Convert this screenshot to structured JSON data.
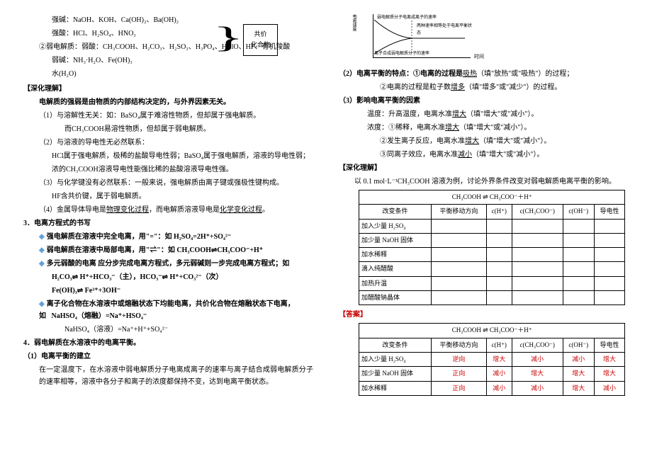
{
  "left": {
    "l1": "强碱：NaOH、KOH、Ca(OH)₂、Ba(OH)₂",
    "l2": "强酸：HCl、H₂SO₄、HNO₃",
    "l3_prefix": "②弱电解质：",
    "l3": "弱酸：CH₃COOH、H₂CO₃、H₂SO₃、H₃PO₄、HClO、HF、有机羧酸",
    "l4": "弱碱：NH₃·H₂O、Fe(OH)₃",
    "l5": "水(H₂O)",
    "box1": "共价",
    "box2": "化合物",
    "sec1_title": "【深化理解】",
    "sec1_sub": "电解质的强弱是由物质的内部结构决定的，与外界因素无关。",
    "p1": "（1）与溶解性无关：如：BaSO₄属于难溶性物质，但却属于强电解质。",
    "p1b": "而CH₃COOH易溶性物质，但却属于弱电解质。",
    "p2": "（2）与溶液的导电性无必然联系：",
    "p2b": "HCl属于强电解质，极稀的盐酸导电性弱；BaSO₄属于强电解质，溶液的导电性弱；",
    "p2c": "浓的CH₃COOH溶液导电性能强比稀的盐酸溶液导电性强。",
    "p3": "（3）与化学键没有必然联系：一般来说，强电解质由离子键或强极性键构成。",
    "p3b": "HF含共价键，属于弱电解质。",
    "p4": "（4）金属导体导电是",
    "p4u": "物理变化过程",
    "p4b": "，而电解质溶液导电是",
    "p4u2": "化学变化过程",
    "p4c": "。",
    "sec3": "3．电离方程式的书写",
    "b1a": "强电解质在溶液中完全电离，用\"=\"：如 H₂SO₄=2H⁺+SO₄²⁻",
    "b1b": "弱电解质在溶液中局部电离，用\"",
    "b1b2": "\"：如 CH₃COOH",
    "b1b3": "CH₃COO⁻+H⁺",
    "b1c": "多元弱酸的电离 应分步完成电离方程式，多元弱碱则一步完成电离方程式；如",
    "b1d": "H₂CO₃",
    "b1d2": " H⁺+HCO₃⁻（主），HCO₃⁻",
    "b1d3": " H⁺+CO₃²⁻（次）",
    "b1e": "Fe(OH)₃",
    "b1e2": " Fe³⁺+3OH⁻",
    "b1f": "离子化合物在水溶液中或熔融状态下均能电离，共价化合物在熔融状态下电离，如",
    "b1f2": "NaHSO₄（熔融）=Na⁺+HSO₄⁻",
    "b1g": "NaHSO₄（溶液）=Na⁺+H⁺+SO₄²⁻",
    "sec4": "4．弱电解质在水溶液中的电离平衡。",
    "sec4_1": "（1）电离平衡的建立",
    "p5": "在一定温度下，在水溶液中弱电解质分子电离成离子的速率与离子结合成弱电解质分子的速率相等，溶液中各分子和离子的浓度都保持不变，达到电离平衡状态。"
  },
  "right": {
    "chart": {
      "ylabel": "电离速度",
      "xlabel": "时间",
      "ann1": "弱电解质分子电离成离子的速率",
      "ann2": "两种速率相等处于电离平衡状态",
      "ann3": "离子合成弱电解质分子的速率"
    },
    "r1": "（2）电离平衡的特点：①电离的过程是",
    "r1u": "吸热",
    "r1b": "（填\"放热\"或\"吸热\"）的过程；",
    "r2": "②电离的过程是粒子数",
    "r2u": "增多",
    "r2b": "（填\"增多\"或\"减少\"）的过程。",
    "r3": "（3）影响电离平衡的因素",
    "r3a": "温度：升高温度，电离水准",
    "r3au": "增大",
    "r3ab": "（填\"增大\"或\"减小\"）。",
    "r3b": "浓度：①稀释，电离水准",
    "r3bu": "增大",
    "r3bb": "（填\"增大\"或\"减小\"）。",
    "r3c": "②发生离子反应，电离水准",
    "r3cu": "增大",
    "r3cb": "（填\"增大\"或\"减小\"）。",
    "r3d": "③同离子效应，电离水准",
    "r3du": "减小",
    "r3db": "（填\"增大\"或\"减小\"）。",
    "deep_title": "【深化理解】",
    "deep_sub": "以 0.1 mol·L⁻¹CH₃COOH 溶液为例，讨论外界条件改变对弱电解质电离平衡的影响。",
    "eq": "CH₃COOH ⇌ CH₃COO⁻＋H⁺",
    "table1": {
      "headers": [
        "改变条件",
        "平衡移动方向",
        "c(H⁺)",
        "c(CH₃COO⁻)",
        "c(OH⁻)",
        "导电性"
      ],
      "rows": [
        [
          "加入少量 H₂SO₄",
          "",
          "",
          "",
          "",
          ""
        ],
        [
          "加少量 NaOH 固体",
          "",
          "",
          "",
          "",
          ""
        ],
        [
          "加水稀释",
          "",
          "",
          "",
          "",
          ""
        ],
        [
          "滴入纯醋酸",
          "",
          "",
          "",
          "",
          ""
        ],
        [
          "加热升温",
          "",
          "",
          "",
          "",
          ""
        ],
        [
          "加醋酸钠晶体",
          "",
          "",
          "",
          "",
          ""
        ]
      ]
    },
    "ans_title": "【答案】",
    "table2": {
      "headers": [
        "改变条件",
        "平衡移动方向",
        "c(H⁺)",
        "c(CH₃COO⁻)",
        "c(OH⁻)",
        "导电性"
      ],
      "rows": [
        [
          "加入少量 H₂SO₄",
          "逆向",
          "增大",
          "减小",
          "减小",
          "增大"
        ],
        [
          "加少量 NaOH 固体",
          "正向",
          "减小",
          "增大",
          "增大",
          "增大"
        ],
        [
          "加水稀释",
          "正向",
          "减小",
          "减小",
          "增大",
          "减小"
        ]
      ]
    }
  }
}
